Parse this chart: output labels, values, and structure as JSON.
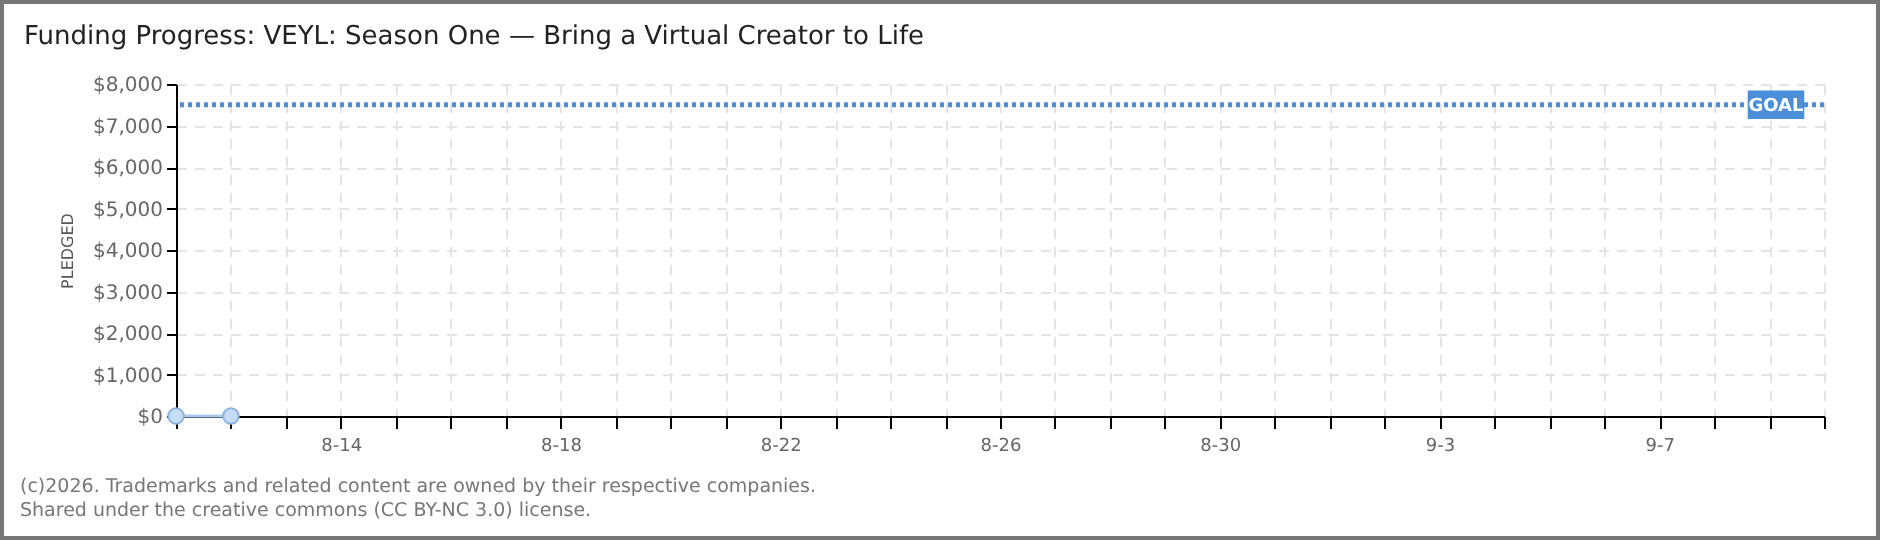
{
  "chart_data": {
    "type": "line",
    "title": "Funding Progress: VEYL: Season One — Bring a Virtual Creator to Life",
    "ylabel": "PLEDGED",
    "annotations": [
      "(c)2026. Trademarks and related content are owned by their respective companies.",
      "Shared under the creative commons (CC BY-NC 3.0) license."
    ],
    "series": [
      {
        "color": "#a9cdf0",
        "x": [
          "--08-11",
          "--08-12"
        ],
        "values": [
          0,
          0
        ]
      }
    ],
    "marker": "circle",
    "line_style": "solid",
    "grid": true,
    "xlim": [
      "--08-11",
      "--09-10"
    ],
    "xticks": [
      {
        "value": "--08-11",
        "label": null
      },
      {
        "value": "--08-12",
        "label": null
      },
      {
        "value": "--08-13",
        "label": null
      },
      {
        "value": "--08-14",
        "label": "8-14"
      },
      {
        "value": "--08-15",
        "label": null
      },
      {
        "value": "--08-16",
        "label": null
      },
      {
        "value": "--08-17",
        "label": null
      },
      {
        "value": "--08-18",
        "label": "8-18"
      },
      {
        "value": "--08-19",
        "label": null
      },
      {
        "value": "--08-20",
        "label": null
      },
      {
        "value": "--08-21",
        "label": null
      },
      {
        "value": "--08-22",
        "label": "8-22"
      },
      {
        "value": "--08-23",
        "label": null
      },
      {
        "value": "--08-24",
        "label": null
      },
      {
        "value": "--08-25",
        "label": null
      },
      {
        "value": "--08-26",
        "label": "8-26"
      },
      {
        "value": "--08-27",
        "label": null
      },
      {
        "value": "--08-28",
        "label": null
      },
      {
        "value": "--08-29",
        "label": null
      },
      {
        "value": "--08-30",
        "label": "8-30"
      },
      {
        "value": "--08-31",
        "label": null
      },
      {
        "value": "--09-01",
        "label": null
      },
      {
        "value": "--09-02",
        "label": null
      },
      {
        "value": "--09-03",
        "label": "9-3"
      },
      {
        "value": "--09-04",
        "label": null
      },
      {
        "value": "--09-05",
        "label": null
      },
      {
        "value": "--09-06",
        "label": null
      },
      {
        "value": "--09-07",
        "label": "9-7"
      },
      {
        "value": "--09-08",
        "label": null
      },
      {
        "value": "--09-09",
        "label": null
      },
      {
        "value": "--09-10",
        "label": null
      }
    ],
    "ylim": [
      0,
      8000
    ],
    "yticks": [
      {
        "value": 0,
        "label": "$0"
      },
      {
        "value": 1000,
        "label": "$1,000"
      },
      {
        "value": 2000,
        "label": "$2,000"
      },
      {
        "value": 3000,
        "label": "$3,000"
      },
      {
        "value": 4000,
        "label": "$4,000"
      },
      {
        "value": 5000,
        "label": "$5,000"
      },
      {
        "value": 6000,
        "label": "$6,000"
      },
      {
        "value": 7000,
        "label": "$7,000"
      },
      {
        "value": 8000,
        "label": "$8,000"
      }
    ],
    "ref_lines": [
      {
        "axis": "y",
        "value": 7500,
        "label": "GOAL",
        "color": "#4a8fd8",
        "line_style": "dotted"
      }
    ]
  }
}
